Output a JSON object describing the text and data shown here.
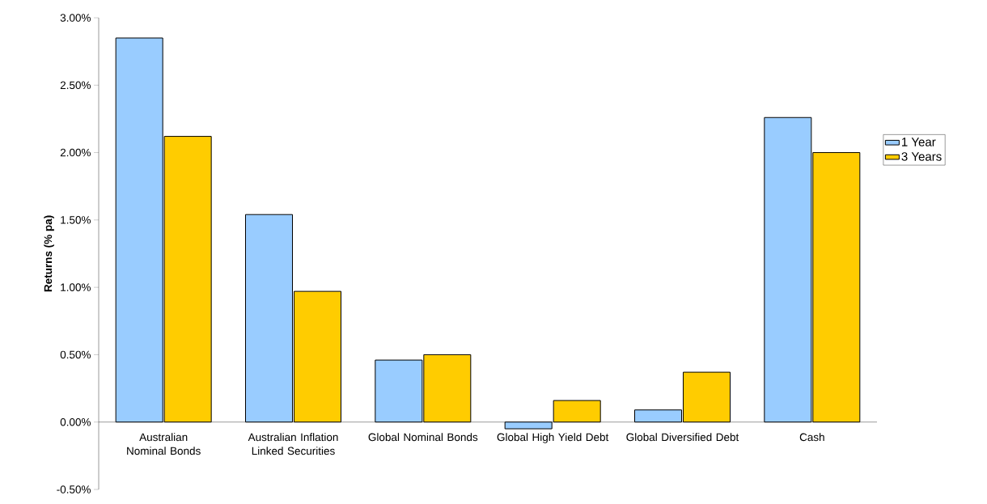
{
  "chart_data": {
    "type": "bar",
    "ylabel": "Returns (% pa)",
    "categories": [
      "Australian Nominal Bonds",
      "Australian Inflation Linked Securities",
      "Global Nominal Bonds",
      "Global High Yield Debt",
      "Global Diversified Debt",
      "Cash"
    ],
    "series": [
      {
        "name": "1 Year",
        "color": "#99ccff",
        "values": [
          2.85,
          1.54,
          0.46,
          -0.05,
          0.09,
          2.26
        ]
      },
      {
        "name": "3 Years",
        "color": "#ffcc00",
        "values": [
          2.12,
          0.97,
          0.5,
          0.16,
          0.37,
          2.0
        ]
      }
    ],
    "ylim": [
      -0.5,
      3.0
    ],
    "yticks": [
      {
        "value": -0.5,
        "label": "-0.50%"
      },
      {
        "value": 0,
        "label": "0.00%"
      },
      {
        "value": 0.5,
        "label": "0.50%"
      },
      {
        "value": 1.0,
        "label": "1.00%"
      },
      {
        "value": 1.5,
        "label": "1.50%"
      },
      {
        "value": 2.0,
        "label": "2.00%"
      },
      {
        "value": 2.5,
        "label": "2.50%"
      },
      {
        "value": 3.0,
        "label": "3.00%"
      }
    ],
    "grid": false,
    "legend": "right"
  }
}
